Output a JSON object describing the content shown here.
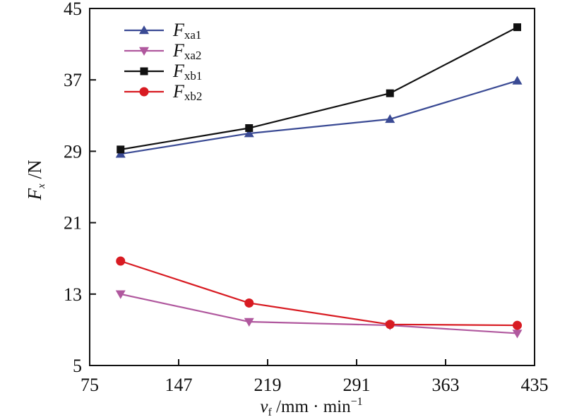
{
  "chart_data": {
    "type": "line",
    "x": [
      100,
      204,
      318,
      421
    ],
    "xlim": [
      75,
      435
    ],
    "ylim": [
      5,
      45
    ],
    "xticks": [
      75,
      147,
      219,
      291,
      363,
      435
    ],
    "yticks": [
      5,
      13,
      21,
      29,
      37,
      45
    ],
    "xtick_labels": [
      "75",
      "147",
      "219",
      "291",
      "363",
      "435"
    ],
    "ytick_labels": [
      "5",
      "13",
      "21",
      "29",
      "37",
      "45"
    ],
    "xlabel": {
      "var": "v",
      "sub": "f",
      "unit": " /mm · min",
      "sup": "−1"
    },
    "ylabel": {
      "var": "F",
      "sub": "x",
      "unit": " /N"
    },
    "grid": false,
    "legend_position": "top-left",
    "series": [
      {
        "name": "Fxa1",
        "label_main": "F",
        "label_sub": "xa1",
        "color": "#3a4a94",
        "marker": "triangle-up",
        "values": [
          28.7,
          31.0,
          32.6,
          36.9
        ]
      },
      {
        "name": "Fxa2",
        "label_main": "F",
        "label_sub": "xa2",
        "color": "#b0589e",
        "marker": "triangle-down",
        "values": [
          13.0,
          9.9,
          9.5,
          8.6
        ]
      },
      {
        "name": "Fxb1",
        "label_main": "F",
        "label_sub": "xb1",
        "color": "#111111",
        "marker": "square",
        "values": [
          29.2,
          31.6,
          35.5,
          42.9
        ]
      },
      {
        "name": "Fxb2",
        "label_main": "F",
        "label_sub": "xb2",
        "color": "#d81b22",
        "marker": "circle",
        "values": [
          16.7,
          12.0,
          9.6,
          9.5
        ]
      }
    ]
  }
}
